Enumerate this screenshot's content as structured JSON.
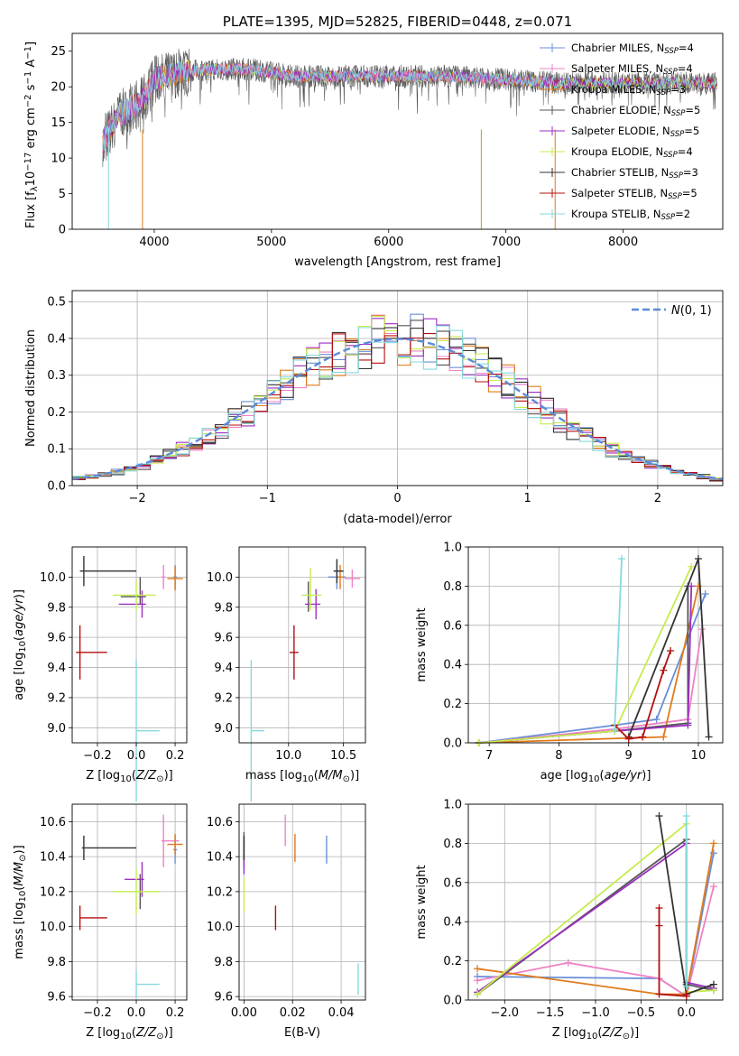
{
  "colors": {
    "Chabrier MILES": "#6a8fd8",
    "Salpeter MILES": "#ee82c4",
    "Kroupa MILES": "#e07b1c",
    "Chabrier ELODIE": "#555555",
    "Salpeter ELODIE": "#9b2fc0",
    "Kroupa ELODIE": "#c6ec50",
    "Chabrier STELIB": "#333333",
    "Salpeter STELIB": "#b40f0f",
    "Kroupa STELIB": "#86d9de",
    "normal": "#5b8bd9"
  },
  "chart_data": [
    {
      "type": "line",
      "title": "PLATE=1395, MJD=52825, FIBERID=0448, z=0.071",
      "xlabel": "wavelength [Angstrom, rest frame]",
      "ylabel": "Flux [f_λ 10^-17 erg cm^-2 s^-1 A^-1]",
      "xlim": [
        3300,
        8850
      ],
      "ylim": [
        0,
        27.5
      ],
      "xticks": [
        "4000",
        "5000",
        "6000",
        "7000",
        "8000"
      ],
      "yticks": [
        "0",
        "5",
        "10",
        "15",
        "20",
        "25"
      ],
      "legend_position": "top-right",
      "legend": [
        {
          "label": "Chabrier MILES, N_SSP=4",
          "text": "Chabrier MILES, N",
          "sub": "SSP",
          "tail": "=4"
        },
        {
          "label": "Salpeter MILES, N_SSP=4",
          "text": "Salpeter MILES, N",
          "sub": "SSP",
          "tail": "=4"
        },
        {
          "label": "Kroupa MILES, N_SSP=3",
          "text": "Kroupa MILES, N",
          "sub": "SSP",
          "tail": "=3"
        },
        {
          "label": "Chabrier ELODIE, N_SSP=5",
          "text": "Chabrier ELODIE, N",
          "sub": "SSP",
          "tail": "=5"
        },
        {
          "label": "Salpeter ELODIE, N_SSP=5",
          "text": "Salpeter ELODIE, N",
          "sub": "SSP",
          "tail": "=5"
        },
        {
          "label": "Kroupa ELODIE, N_SSP=4",
          "text": "Kroupa ELODIE, N",
          "sub": "SSP",
          "tail": "=4"
        },
        {
          "label": "Chabrier STELIB, N_SSP=3",
          "text": "Chabrier STELIB, N",
          "sub": "SSP",
          "tail": "=3"
        },
        {
          "label": "Salpeter STELIB, N_SSP=5",
          "text": "Salpeter STELIB, N",
          "sub": "SSP",
          "tail": "=5"
        },
        {
          "label": "Kroupa STELIB, N_SSP=2",
          "text": "Kroupa STELIB, N",
          "sub": "SSP",
          "tail": "=2"
        }
      ],
      "series_envelope": {
        "x": [
          3550,
          3700,
          3900,
          4000,
          4200,
          4500,
          4800,
          5000,
          5200,
          5500,
          6000,
          6500,
          7000,
          7500,
          8000,
          8500,
          8800
        ],
        "y": [
          12,
          16,
          18,
          21,
          22,
          22.5,
          22.5,
          22,
          21.5,
          21.5,
          21.5,
          21.5,
          21,
          20.5,
          20.5,
          20.5,
          20.5
        ]
      },
      "dips": [
        {
          "x": 3610,
          "y": 0
        },
        {
          "x": 3900,
          "y": 0
        },
        {
          "x": 6790,
          "y": 0
        },
        {
          "x": 7420,
          "y": 0
        }
      ]
    },
    {
      "type": "bar",
      "xlabel": "(data-model)/error",
      "ylabel": "Normed distribution",
      "xlim": [
        -2.5,
        2.5
      ],
      "ylim": [
        0,
        0.53
      ],
      "xticks": [
        "−2",
        "−1",
        "0",
        "1",
        "2"
      ],
      "yticks": [
        "0.0",
        "0.1",
        "0.2",
        "0.3",
        "0.4",
        "0.5"
      ],
      "grid": true,
      "legend_position": "top-right",
      "reference_curve": "N(0,1)",
      "legend_label": "N(0, 1)",
      "bin_width": 0.1
    },
    {
      "type": "scatter",
      "xlabel": "Z [log10(Z/Z⊙)]",
      "ylabel": "age [log10(age/yr)]",
      "xlim": [
        -0.33,
        0.26
      ],
      "ylim": [
        8.9,
        10.2
      ],
      "xticks": [
        "−0.2",
        "0.0",
        "0.2"
      ],
      "yticks": [
        "9.0",
        "9.2",
        "9.4",
        "9.6",
        "9.8",
        "10.0"
      ],
      "points": [
        {
          "series": "Chabrier MILES",
          "x": 0.2,
          "y": 10.0
        },
        {
          "series": "Salpeter MILES",
          "x": 0.14,
          "y": 10.0
        },
        {
          "series": "Kroupa MILES",
          "x": 0.2,
          "y": 9.99
        },
        {
          "series": "Chabrier ELODIE",
          "x": 0.02,
          "y": 9.87
        },
        {
          "series": "Salpeter ELODIE",
          "x": 0.03,
          "y": 9.82
        },
        {
          "series": "Kroupa ELODIE",
          "x": 0.0,
          "y": 9.88
        },
        {
          "series": "Chabrier STELIB",
          "x": -0.27,
          "y": 10.04
        },
        {
          "series": "Salpeter STELIB",
          "x": -0.29,
          "y": 9.5
        },
        {
          "series": "Kroupa STELIB",
          "x": 0.0,
          "y": 8.98
        }
      ]
    },
    {
      "type": "scatter",
      "xlabel": "mass [log10(M/M⊙)]",
      "ylabel": "",
      "xlim": [
        9.55,
        10.7
      ],
      "ylim": [
        8.9,
        10.2
      ],
      "xticks": [
        "10.0",
        "10.5"
      ],
      "yticks": [
        "9.0",
        "9.2",
        "9.4",
        "9.6",
        "9.8",
        "10.0"
      ],
      "points": [
        {
          "series": "Chabrier MILES",
          "x": 10.44,
          "y": 10.0
        },
        {
          "series": "Salpeter MILES",
          "x": 10.58,
          "y": 9.99
        },
        {
          "series": "Kroupa MILES",
          "x": 10.47,
          "y": 10.0
        },
        {
          "series": "Chabrier ELODIE",
          "x": 10.18,
          "y": 9.87
        },
        {
          "series": "Salpeter ELODIE",
          "x": 10.25,
          "y": 9.82
        },
        {
          "series": "Kroupa ELODIE",
          "x": 10.2,
          "y": 9.88
        },
        {
          "series": "Chabrier STELIB",
          "x": 10.44,
          "y": 10.04
        },
        {
          "series": "Salpeter STELIB",
          "x": 10.05,
          "y": 9.5
        },
        {
          "series": "Kroupa STELIB",
          "x": 9.66,
          "y": 8.98
        }
      ]
    },
    {
      "type": "line",
      "xlabel": "age [log10(age/yr)]",
      "ylabel": "mass weight",
      "xlim": [
        6.7,
        10.35
      ],
      "ylim": [
        0,
        1.0
      ],
      "xticks": [
        "7",
        "8",
        "9",
        "10"
      ],
      "yticks": [
        "0.0",
        "0.2",
        "0.4",
        "0.6",
        "0.8",
        "1.0"
      ],
      "grid": true,
      "series": [
        {
          "series": "Chabrier MILES",
          "x": [
            6.85,
            8.8,
            9.4,
            10.1
          ],
          "y": [
            0.0,
            0.09,
            0.12,
            0.76
          ]
        },
        {
          "series": "Salpeter MILES",
          "x": [
            6.85,
            8.8,
            9.85,
            10.05
          ],
          "y": [
            0.0,
            0.07,
            0.12,
            0.58
          ]
        },
        {
          "series": "Kroupa MILES",
          "x": [
            6.85,
            9.5,
            10.0
          ],
          "y": [
            0.0,
            0.03,
            0.8
          ]
        },
        {
          "series": "Chabrier ELODIE",
          "x": [
            6.85,
            8.8,
            9.85,
            9.85
          ],
          "y": [
            0.0,
            0.06,
            0.1,
            0.8
          ]
        },
        {
          "series": "Salpeter ELODIE",
          "x": [
            6.85,
            8.8,
            9.85,
            9.9
          ],
          "y": [
            0.0,
            0.06,
            0.09,
            0.8
          ]
        },
        {
          "series": "Kroupa ELODIE",
          "x": [
            6.85,
            8.8,
            9.9
          ],
          "y": [
            0.0,
            0.06,
            0.9
          ]
        },
        {
          "series": "Chabrier STELIB",
          "x": [
            9.0,
            10.0,
            10.15
          ],
          "y": [
            0.03,
            0.94,
            0.03
          ]
        },
        {
          "series": "Salpeter STELIB",
          "x": [
            8.8,
            9.0,
            9.2,
            9.5,
            9.6
          ],
          "y": [
            0.09,
            0.02,
            0.03,
            0.37,
            0.47
          ]
        },
        {
          "series": "Kroupa STELIB",
          "x": [
            8.8,
            8.9
          ],
          "y": [
            0.07,
            0.94
          ]
        }
      ]
    },
    {
      "type": "scatter",
      "xlabel": "Z [log10(Z/Z⊙)]",
      "ylabel": "mass [log10(M/M⊙)]",
      "xlim": [
        -0.33,
        0.26
      ],
      "ylim": [
        9.58,
        10.7
      ],
      "xticks": [
        "−0.2",
        "0.0",
        "0.2"
      ],
      "yticks": [
        "9.6",
        "9.8",
        "10.0",
        "10.2",
        "10.4",
        "10.6"
      ],
      "points": [
        {
          "series": "Chabrier MILES",
          "x": 0.2,
          "y": 10.44
        },
        {
          "series": "Salpeter MILES",
          "x": 0.14,
          "y": 10.49
        },
        {
          "series": "Kroupa MILES",
          "x": 0.2,
          "y": 10.47
        },
        {
          "series": "Chabrier ELODIE",
          "x": 0.02,
          "y": 10.2
        },
        {
          "series": "Salpeter ELODIE",
          "x": 0.03,
          "y": 10.27
        },
        {
          "series": "Kroupa ELODIE",
          "x": 0.0,
          "y": 10.2
        },
        {
          "series": "Chabrier STELIB",
          "x": -0.27,
          "y": 10.45
        },
        {
          "series": "Salpeter STELIB",
          "x": -0.29,
          "y": 10.05
        },
        {
          "series": "Kroupa STELIB",
          "x": 0.0,
          "y": 9.67
        }
      ]
    },
    {
      "type": "scatter",
      "xlabel": "E(B-V)",
      "ylabel": "",
      "xlim": [
        -0.002,
        0.05
      ],
      "ylim": [
        9.58,
        10.7
      ],
      "xticks": [
        "0.00",
        "0.02",
        "0.04"
      ],
      "yticks": [
        "9.6",
        "9.8",
        "10.0",
        "10.2",
        "10.4",
        "10.6"
      ],
      "points": [
        {
          "series": "Chabrier MILES",
          "x": 0.034,
          "y": 10.44
        },
        {
          "series": "Salpeter MILES",
          "x": 0.017,
          "y": 10.55
        },
        {
          "series": "Kroupa MILES",
          "x": 0.021,
          "y": 10.45
        },
        {
          "series": "Chabrier ELODIE",
          "x": 0.0,
          "y": 10.44
        },
        {
          "series": "Salpeter ELODIE",
          "x": 0.0,
          "y": 10.4
        },
        {
          "series": "Kroupa ELODIE",
          "x": 0.0,
          "y": 10.18
        },
        {
          "series": "Chabrier STELIB",
          "x": 0.0,
          "y": 10.45
        },
        {
          "series": "Salpeter STELIB",
          "x": 0.013,
          "y": 10.05
        },
        {
          "series": "Kroupa STELIB",
          "x": 0.047,
          "y": 9.7
        }
      ]
    },
    {
      "type": "line",
      "xlabel": "Z [log10(Z/Z⊙)]",
      "ylabel": "mass weight",
      "xlim": [
        -2.4,
        0.4
      ],
      "ylim": [
        0,
        1.0
      ],
      "xticks": [
        "−2.0",
        "−1.5",
        "−1.0",
        "−0.5",
        "0.0"
      ],
      "yticks": [
        "0.0",
        "0.2",
        "0.4",
        "0.6",
        "0.8",
        "1.0"
      ],
      "grid": true,
      "series": [
        {
          "series": "Chabrier MILES",
          "x": [
            -2.3,
            -0.3,
            0.0,
            0.3
          ],
          "y": [
            0.12,
            0.11,
            0.02,
            0.75
          ]
        },
        {
          "series": "Salpeter MILES",
          "x": [
            -2.3,
            -1.3,
            -0.3,
            0.0,
            0.3
          ],
          "y": [
            0.1,
            0.19,
            0.11,
            0.02,
            0.58
          ]
        },
        {
          "series": "Kroupa MILES",
          "x": [
            -2.3,
            -0.3,
            0.0,
            0.3
          ],
          "y": [
            0.16,
            0.03,
            0.03,
            0.8
          ]
        },
        {
          "series": "Chabrier ELODIE",
          "x": [
            -2.3,
            0.0,
            0.0,
            0.3
          ],
          "y": [
            0.03,
            0.82,
            0.08,
            0.05
          ]
        },
        {
          "series": "Salpeter ELODIE",
          "x": [
            -2.3,
            0.0,
            0.0,
            0.3
          ],
          "y": [
            0.04,
            0.8,
            0.09,
            0.06
          ]
        },
        {
          "series": "Kroupa ELODIE",
          "x": [
            -2.3,
            0.0,
            0.0,
            0.3
          ],
          "y": [
            0.03,
            0.9,
            0.04,
            0.05
          ]
        },
        {
          "series": "Chabrier STELIB",
          "x": [
            -0.3,
            0.0,
            0.3
          ],
          "y": [
            0.94,
            0.03,
            0.08
          ]
        },
        {
          "series": "Salpeter STELIB",
          "x": [
            -0.3,
            -0.3,
            -0.3,
            0.0,
            0.0
          ],
          "y": [
            0.47,
            0.38,
            0.03,
            0.02,
            0.03
          ]
        },
        {
          "series": "Kroupa STELIB",
          "x": [
            0.0,
            0.0
          ],
          "y": [
            0.07,
            0.94
          ]
        }
      ]
    }
  ]
}
